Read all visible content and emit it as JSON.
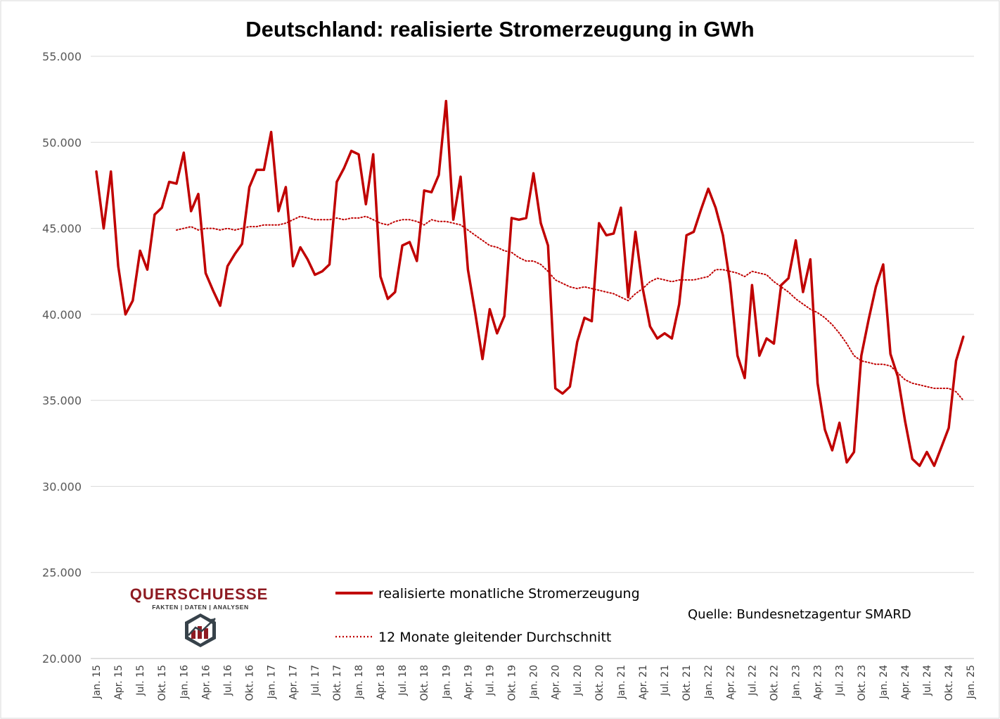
{
  "chart_data": {
    "type": "line",
    "title": "Deutschland: realisierte Stromerzeugung in GWh",
    "xlabel": "",
    "ylabel": "",
    "ylim": [
      20000,
      55000
    ],
    "y_ticks": [
      "20.000",
      "25.000",
      "30.000",
      "35.000",
      "40.000",
      "45.000",
      "50.000",
      "55.000"
    ],
    "y_tick_values": [
      20000,
      25000,
      30000,
      35000,
      40000,
      45000,
      50000,
      55000
    ],
    "grid": true,
    "x_ticks": [
      "Jan. 15",
      "Apr. 15",
      "Jul. 15",
      "Okt. 15",
      "Jan. 16",
      "Apr. 16",
      "Jul. 16",
      "Okt. 16",
      "Jan. 17",
      "Apr. 17",
      "Jul. 17",
      "Okt. 17",
      "Jan. 18",
      "Apr. 18",
      "Jul. 18",
      "Okt. 18",
      "Jan. 19",
      "Apr. 19",
      "Jul. 19",
      "Okt. 19",
      "Jan. 20",
      "Apr. 20",
      "Jul. 20",
      "Okt. 20",
      "Jan. 21",
      "Apr. 21",
      "Jul. 21",
      "Okt. 21",
      "Jan. 22",
      "Apr. 22",
      "Jul. 22",
      "Okt. 22",
      "Jan. 23",
      "Apr. 23",
      "Jul. 23",
      "Okt. 23",
      "Jan. 24",
      "Apr. 24",
      "Jul. 24",
      "Okt. 24",
      "Jan. 25"
    ],
    "x_start": "2015-01",
    "series": [
      {
        "name": "realisierte monatliche Stromerzeugung",
        "style": "solid",
        "color": "#c00000",
        "values": [
          48300,
          45000,
          48300,
          42800,
          40000,
          40800,
          43700,
          42600,
          45800,
          46200,
          47700,
          47600,
          49400,
          46000,
          47000,
          42400,
          41400,
          40500,
          42800,
          43500,
          44100,
          47400,
          48400,
          48400,
          50600,
          46000,
          47400,
          42800,
          43900,
          43200,
          42300,
          42500,
          42900,
          47700,
          48500,
          49500,
          49300,
          46400,
          49300,
          42200,
          40900,
          41300,
          44000,
          44200,
          43100,
          47200,
          47100,
          48100,
          52400,
          45500,
          48000,
          42600,
          40100,
          37400,
          40300,
          38900,
          39900,
          45600,
          45500,
          45600,
          48200,
          45300,
          44000,
          35700,
          35400,
          35800,
          38400,
          39800,
          39600,
          45300,
          44600,
          44700,
          46200,
          41000,
          44800,
          41500,
          39300,
          38600,
          38900,
          38600,
          40600,
          44600,
          44800,
          46100,
          47300,
          46200,
          44600,
          41800,
          37600,
          36300,
          41700,
          37600,
          38600,
          38300,
          41700,
          42100,
          44300,
          41300,
          43200,
          36000,
          33300,
          32100,
          33700,
          31400,
          32000,
          37600,
          39700,
          41600,
          42900,
          37700,
          36400,
          33800,
          31600,
          31200,
          32000,
          31200,
          32300,
          33400,
          37300,
          38700
        ]
      },
      {
        "name": "12 Monate gleitender Durchschnitt",
        "style": "dotted",
        "color": "#c00000",
        "values": [
          null,
          null,
          null,
          null,
          null,
          null,
          null,
          null,
          null,
          null,
          null,
          44900,
          45000,
          45100,
          44900,
          45000,
          45000,
          44900,
          45000,
          44900,
          45000,
          45100,
          45100,
          45200,
          45200,
          45200,
          45300,
          45500,
          45700,
          45600,
          45500,
          45500,
          45500,
          45600,
          45500,
          45600,
          45600,
          45700,
          45500,
          45300,
          45200,
          45400,
          45500,
          45500,
          45400,
          45200,
          45500,
          45400,
          45400,
          45300,
          45200,
          44900,
          44600,
          44300,
          44000,
          43900,
          43700,
          43600,
          43300,
          43100,
          43100,
          42900,
          42500,
          42000,
          41800,
          41600,
          41500,
          41600,
          41500,
          41400,
          41300,
          41200,
          41000,
          40800,
          41200,
          41500,
          41900,
          42100,
          42000,
          41900,
          42000,
          42000,
          42000,
          42100,
          42200,
          42600,
          42600,
          42500,
          42400,
          42200,
          42500,
          42400,
          42300,
          41900,
          41600,
          41300,
          40900,
          40600,
          40300,
          40100,
          39800,
          39400,
          38900,
          38300,
          37600,
          37300,
          37200,
          37100,
          37100,
          37000,
          36600,
          36200,
          36000,
          35900,
          35800,
          35700,
          35700,
          35700,
          35500,
          35000
        ]
      }
    ],
    "legend": {
      "placement": "bottom-center",
      "entries": [
        "realisierte monatliche Stromerzeugung",
        "12 Monate gleitender Durchschnitt"
      ]
    },
    "annotations": [
      "Quelle: Bundesnetzagentur SMARD"
    ]
  },
  "logo": {
    "name": "QUERSCHUESSE",
    "tagline": "FAKTEN | DATEN | ANALYSEN",
    "icon": "bar-chart-hexagon-icon",
    "colors": {
      "primary": "#8e1b22",
      "dark": "#37424a"
    }
  },
  "colors": {
    "series": "#c00000",
    "grid": "#d9d9d9",
    "axis_text": "#595959"
  }
}
